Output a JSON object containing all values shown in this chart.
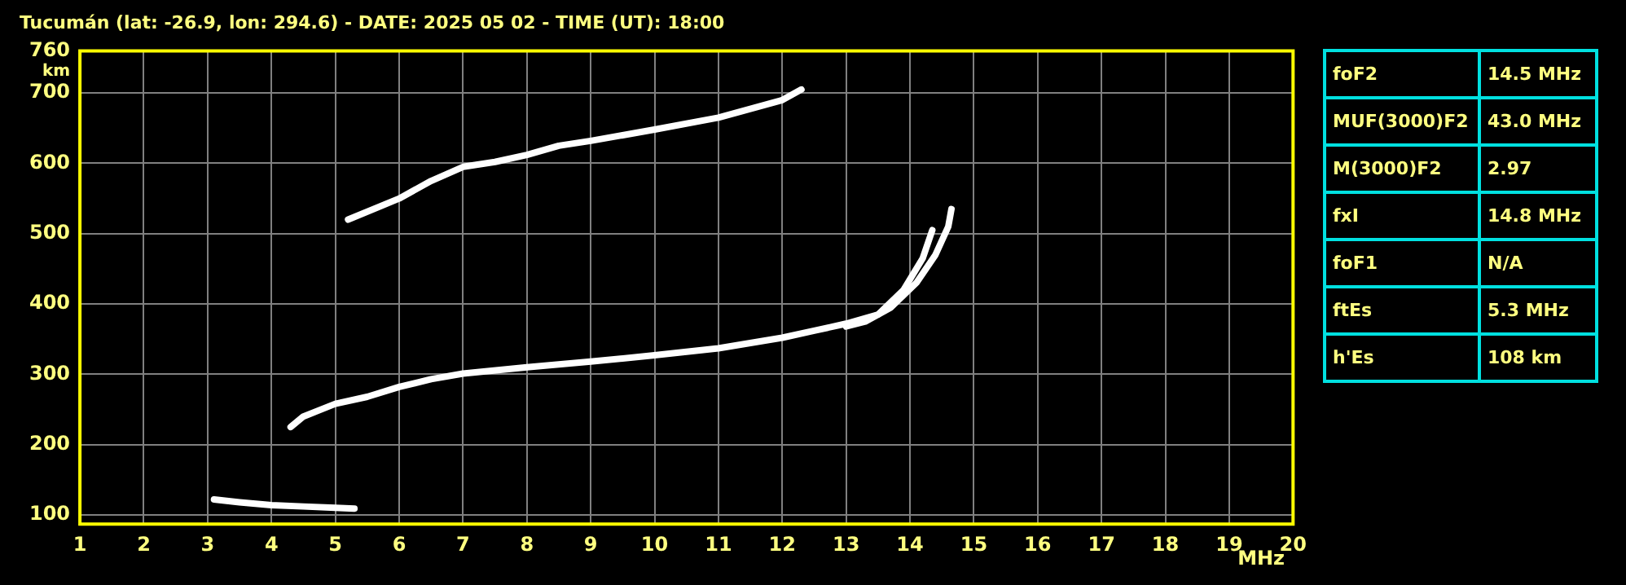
{
  "chart_data": [
    {
      "type": "line",
      "title": "Tucumán (lat: -26.9, lon: 294.6) - DATE: 2025 05 02 - TIME (UT): 18:00",
      "xlabel": "MHz",
      "ylabel": "km",
      "xlim": [
        1,
        20
      ],
      "xticks": [
        1,
        2,
        3,
        4,
        5,
        6,
        7,
        8,
        9,
        10,
        11,
        12,
        13,
        14,
        15,
        16,
        17,
        18,
        19,
        20
      ],
      "ylim": [
        87,
        760
      ],
      "yticks": [
        100,
        200,
        300,
        400,
        500,
        600,
        700,
        760
      ],
      "grid": true,
      "legend": false,
      "marker": "none",
      "line_style": "solid",
      "series": [
        {
          "color": "#ffffff",
          "x": [
            3.1,
            3.5,
            4,
            4.5,
            5,
            5.3
          ],
          "values": [
            122,
            118,
            114,
            112,
            110,
            109
          ]
        },
        {
          "color": "#ffffff",
          "x": [
            4.3,
            4.5,
            5,
            5.5,
            6,
            6.5,
            7,
            8,
            9,
            10,
            11,
            12,
            12.5,
            13,
            13.5,
            13.9,
            14.2,
            14.35
          ],
          "values": [
            225,
            240,
            258,
            268,
            282,
            293,
            301,
            310,
            318,
            327,
            337,
            352,
            362,
            372,
            385,
            420,
            465,
            505
          ]
        },
        {
          "color": "#ffffff",
          "x": [
            13,
            13.3,
            13.7,
            14.1,
            14.4,
            14.6,
            14.65
          ],
          "values": [
            368,
            375,
            395,
            430,
            470,
            510,
            535
          ]
        },
        {
          "color": "#ffffff",
          "x": [
            5.2,
            6,
            6.5,
            7,
            7.5,
            8,
            8.5,
            9,
            9.5,
            10,
            11,
            12,
            12.3
          ],
          "values": [
            520,
            550,
            575,
            595,
            602,
            612,
            625,
            632,
            640,
            648,
            665,
            690,
            705
          ]
        }
      ]
    },
    {
      "type": "other",
      "annotations": [
        "foF2",
        "14.5 MHz",
        "MUF(3000)F2",
        "43.0 MHz",
        "M(3000)F2",
        "2.97",
        "fxI",
        "14.8 MHz",
        "foF1",
        "N/A",
        "ftEs",
        "5.3 MHz",
        "h'Es",
        "108 km"
      ]
    }
  ]
}
